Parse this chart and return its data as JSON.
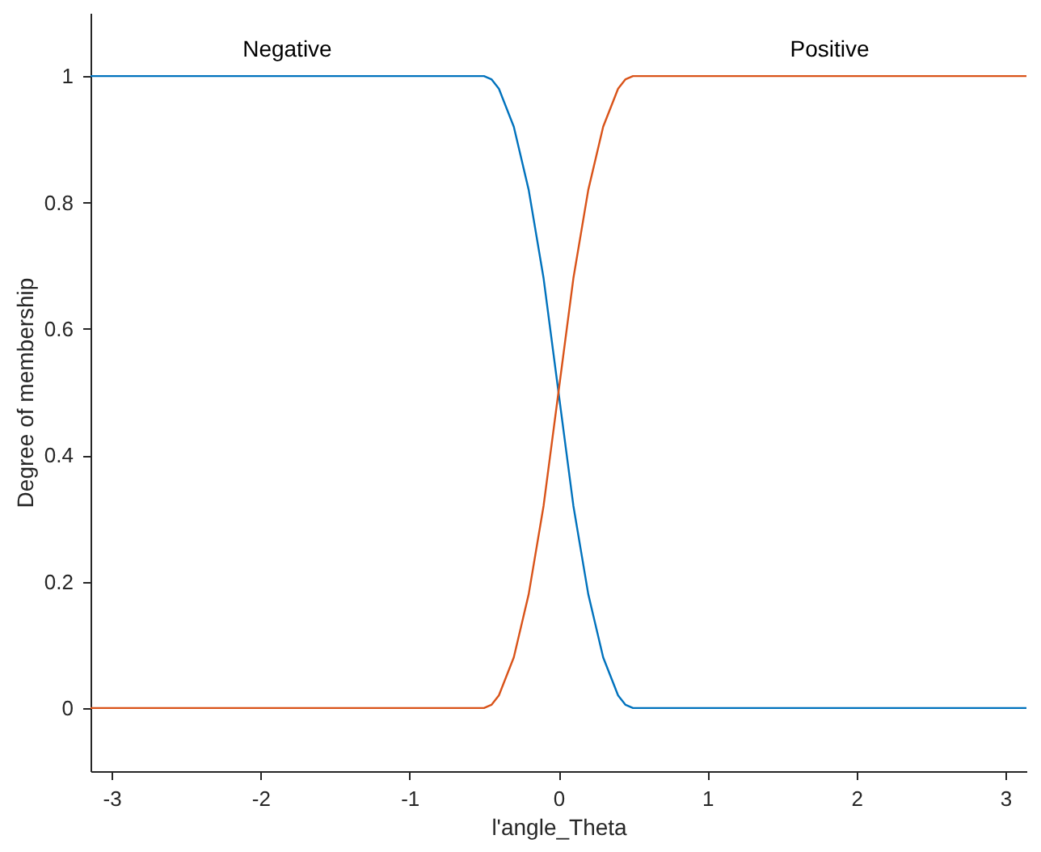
{
  "chart_data": {
    "type": "line",
    "xlabel": "l'angle_Theta",
    "ylabel": "Degree of membership",
    "xlim": [
      -3.1416,
      3.1416
    ],
    "ylim": [
      -0.1,
      1.1
    ],
    "xticks": [
      -3,
      -2,
      -1,
      0,
      1,
      2,
      3
    ],
    "yticks": [
      0,
      0.2,
      0.4,
      0.6,
      0.8,
      1
    ],
    "x": [
      -3.1416,
      -0.5,
      -0.45,
      -0.4,
      -0.3,
      -0.2,
      -0.1,
      0,
      0.1,
      0.2,
      0.3,
      0.4,
      0.45,
      0.5,
      3.1416
    ],
    "series": [
      {
        "name": "Negative",
        "color": "#0072bd",
        "values": [
          1,
          1,
          0.995,
          0.98,
          0.92,
          0.82,
          0.68,
          0.5,
          0.32,
          0.18,
          0.08,
          0.02,
          0.005,
          0,
          0
        ]
      },
      {
        "name": "Positive",
        "color": "#d95319",
        "values": [
          0,
          0,
          0.005,
          0.02,
          0.08,
          0.18,
          0.32,
          0.5,
          0.68,
          0.82,
          0.92,
          0.98,
          0.995,
          1,
          1
        ]
      }
    ],
    "grid": false,
    "legend": false,
    "line_style": "solid",
    "marker": "none"
  }
}
